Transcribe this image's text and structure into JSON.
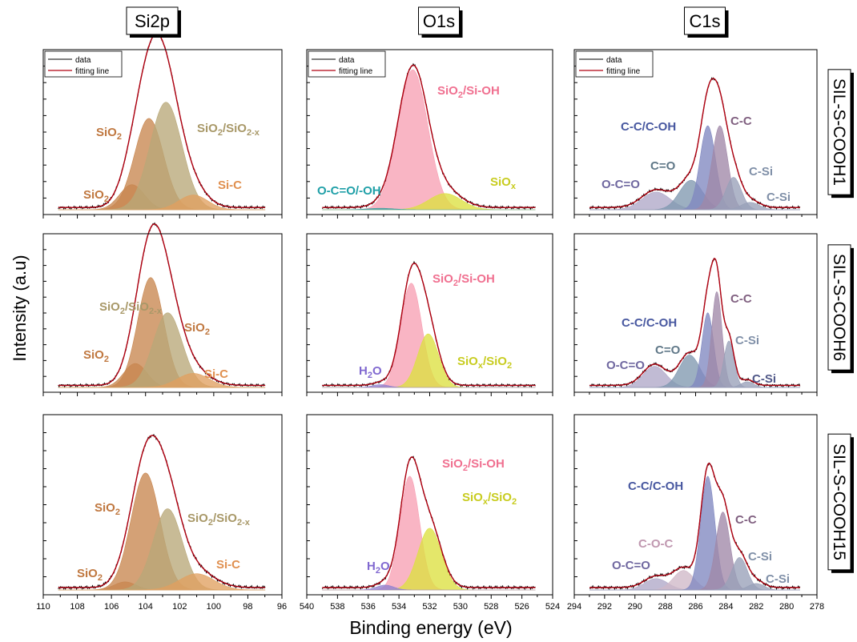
{
  "figure": {
    "y_axis_label": "Intensity (a.u)",
    "x_axis_label": "Binding energy (eV)",
    "column_titles": [
      "Si2p",
      "O1s",
      "C1s"
    ],
    "row_titles": [
      "SIL-S-COOH1",
      "SIL-S-COOH6",
      "SIL-S-COOH15"
    ],
    "legend": {
      "data": "data",
      "fit": "fitting line"
    },
    "colors": {
      "data_line": "#000000",
      "fit_line": "#b00010",
      "panel_border": "#000000"
    }
  },
  "chart_data": [
    {
      "type": "area",
      "title": "Si2p",
      "row": "SIL-S-COOH1",
      "xlim": [
        110,
        96
      ],
      "xticks": [
        110,
        108,
        106,
        104,
        102,
        100,
        98,
        96
      ],
      "peaks": [
        {
          "label": "SiO2 (high BE)",
          "center": 104.8,
          "height": 0.17,
          "fwhm": 1.7,
          "color": "#c8864f"
        },
        {
          "label": "SiO2",
          "center": 103.8,
          "height": 0.62,
          "fwhm": 2.0,
          "color": "#c8864f"
        },
        {
          "label": "SiO2/SiO2-x",
          "center": 102.8,
          "height": 0.73,
          "fwhm": 2.2,
          "color": "#b8a878"
        },
        {
          "label": "Si-C",
          "center": 101.2,
          "height": 0.1,
          "fwhm": 2.0,
          "color": "#e0a060"
        }
      ],
      "annotations": [
        {
          "text": "SiO",
          "sub": "2",
          "color": "#c07840"
        },
        {
          "text": "SiO",
          "sub": "2",
          "color": "#c07840"
        },
        {
          "text": "SiO",
          "sub": "2",
          "tail": "/SiO",
          "sub2": "2-x",
          "color": "#a89868"
        },
        {
          "text": "Si-C",
          "color": "#e09050"
        }
      ]
    },
    {
      "type": "area",
      "title": "O1s",
      "row": "SIL-S-COOH1",
      "xlim": [
        540,
        524
      ],
      "xticks": [
        540,
        538,
        536,
        534,
        532,
        530,
        528,
        526,
        524
      ],
      "peaks": [
        {
          "label": "SiO2/Si-OH",
          "center": 533.1,
          "height": 0.95,
          "fwhm": 2.3,
          "color": "#f7a0b4"
        },
        {
          "label": "SiOx",
          "center": 531.0,
          "height": 0.11,
          "fwhm": 2.5,
          "color": "#dde040"
        },
        {
          "label": "O-C=O/-OH",
          "center": 535.2,
          "height": 0.01,
          "fwhm": 2.0,
          "color": "#40a0a0"
        }
      ],
      "annotations": [
        {
          "text": "SiO",
          "sub": "2",
          "tail": "/Si-OH",
          "color": "#f07090"
        },
        {
          "text": "SiO",
          "sub": "x",
          "color": "#c8cc20"
        },
        {
          "text": "O-C=O/-OH",
          "color": "#20a0a8"
        }
      ]
    },
    {
      "type": "area",
      "title": "C1s",
      "row": "SIL-S-COOH1",
      "xlim": [
        294,
        278
      ],
      "xticks": [
        294,
        292,
        290,
        288,
        286,
        284,
        282,
        280,
        278
      ],
      "peaks": [
        {
          "label": "O-C=O",
          "center": 288.6,
          "height": 0.12,
          "fwhm": 2.2,
          "color": "#b0a8c8"
        },
        {
          "label": "C=O",
          "center": 286.3,
          "height": 0.2,
          "fwhm": 1.8,
          "color": "#8098b0"
        },
        {
          "label": "C-C/C-OH",
          "center": 285.2,
          "height": 0.57,
          "fwhm": 1.2,
          "color": "#8088c0"
        },
        {
          "label": "C-C",
          "center": 284.4,
          "height": 0.57,
          "fwhm": 1.2,
          "color": "#a088a8"
        },
        {
          "label": "C-Si",
          "center": 283.5,
          "height": 0.22,
          "fwhm": 1.2,
          "color": "#98a0b8"
        },
        {
          "label": "C-Si",
          "center": 282.4,
          "height": 0.05,
          "fwhm": 1.4,
          "color": "#98a0b8"
        }
      ],
      "annotations": [
        {
          "text": "C-C/C-OH",
          "color": "#4858a0"
        },
        {
          "text": "C-C",
          "color": "#806080"
        },
        {
          "text": "C=O",
          "color": "#607888"
        },
        {
          "text": "C-Si",
          "color": "#8090a8"
        },
        {
          "text": "O-C=O",
          "color": "#7068a0"
        },
        {
          "text": "C-Si",
          "color": "#8090a8"
        }
      ]
    },
    {
      "type": "area",
      "title": "Si2p",
      "row": "SIL-S-COOH6",
      "xlim": [
        110,
        96
      ],
      "xticks": [
        110,
        108,
        106,
        104,
        102,
        100,
        98,
        96
      ],
      "peaks": [
        {
          "label": "SiO2 (high BE)",
          "center": 104.6,
          "height": 0.17,
          "fwhm": 1.6,
          "color": "#c8864f"
        },
        {
          "label": "SiO2",
          "center": 103.7,
          "height": 0.78,
          "fwhm": 1.8,
          "color": "#c8864f"
        },
        {
          "label": "SiO2/SiO2-x",
          "center": 102.7,
          "height": 0.53,
          "fwhm": 2.0,
          "color": "#b8a878"
        },
        {
          "label": "Si-C",
          "center": 101.2,
          "height": 0.1,
          "fwhm": 2.2,
          "color": "#e0a060"
        }
      ],
      "annotations": [
        {
          "text": "SiO",
          "sub": "2",
          "color": "#c07840"
        },
        {
          "text": "SiO",
          "sub": "2",
          "tail": "/SiO",
          "sub2": "2-x",
          "color": "#a89868"
        },
        {
          "text": "SiO",
          "sub": "2",
          "color": "#c07840"
        },
        {
          "text": "Si-C",
          "color": "#e09050"
        }
      ]
    },
    {
      "type": "area",
      "title": "O1s",
      "row": "SIL-S-COOH6",
      "xlim": [
        540,
        524
      ],
      "xticks": [
        540,
        538,
        536,
        534,
        532,
        530,
        528,
        526,
        524
      ],
      "peaks": [
        {
          "label": "SiO2/Si-OH",
          "center": 533.2,
          "height": 0.74,
          "fwhm": 1.6,
          "color": "#f7a0b4"
        },
        {
          "label": "SiOx/SiO2",
          "center": 532.1,
          "height": 0.38,
          "fwhm": 1.6,
          "color": "#dde040"
        },
        {
          "label": "H2O",
          "center": 535.2,
          "height": 0.02,
          "fwhm": 1.2,
          "color": "#9080d0"
        }
      ],
      "annotations": [
        {
          "text": "SiO",
          "sub": "2",
          "tail": "/Si-OH",
          "color": "#f07090"
        },
        {
          "text": "SiO",
          "sub": "x",
          "tail": "/SiO",
          "sub2": "2",
          "color": "#c8cc20"
        },
        {
          "text": "H",
          "sub": "2",
          "tail": "O",
          "color": "#8068d0"
        }
      ]
    },
    {
      "type": "area",
      "title": "C1s",
      "row": "SIL-S-COOH6",
      "xlim": [
        294,
        278
      ],
      "xticks": [
        294,
        292,
        290,
        288,
        286,
        284,
        282,
        280,
        278
      ],
      "peaks": [
        {
          "label": "O-C=O",
          "center": 288.7,
          "height": 0.15,
          "fwhm": 1.8,
          "color": "#b0a8c8"
        },
        {
          "label": "C=O",
          "center": 286.4,
          "height": 0.23,
          "fwhm": 1.6,
          "color": "#8098b0"
        },
        {
          "label": "C-C/C-OH",
          "center": 285.2,
          "height": 0.53,
          "fwhm": 0.9,
          "color": "#8088c0"
        },
        {
          "label": "C-C",
          "center": 284.6,
          "height": 0.68,
          "fwhm": 0.8,
          "color": "#a088a8"
        },
        {
          "label": "C-Si",
          "center": 283.8,
          "height": 0.33,
          "fwhm": 0.8,
          "color": "#98a0b8"
        },
        {
          "label": "C-Si",
          "center": 282.6,
          "height": 0.04,
          "fwhm": 1.0,
          "color": "#98a0b8"
        }
      ],
      "annotations": [
        {
          "text": "C-C",
          "color": "#806080"
        },
        {
          "text": "C-C/C-OH",
          "color": "#4858a0"
        },
        {
          "text": "C-Si",
          "color": "#8090a8"
        },
        {
          "text": "C=O",
          "color": "#607888"
        },
        {
          "text": "O-C=O",
          "color": "#7068a0"
        },
        {
          "text": "C-Si",
          "color": "#505888"
        }
      ]
    },
    {
      "type": "area",
      "title": "Si2p",
      "row": "SIL-S-COOH15",
      "xlim": [
        110,
        96
      ],
      "xticks": [
        110,
        108,
        106,
        104,
        102,
        100,
        98,
        96
      ],
      "peaks": [
        {
          "label": "SiO2 (high BE)",
          "center": 105.2,
          "height": 0.05,
          "fwhm": 1.5,
          "color": "#c8864f"
        },
        {
          "label": "SiO2",
          "center": 104.0,
          "height": 0.72,
          "fwhm": 2.0,
          "color": "#c8864f"
        },
        {
          "label": "SiO2/SiO2-x",
          "center": 102.7,
          "height": 0.5,
          "fwhm": 2.0,
          "color": "#b8a878"
        },
        {
          "label": "Si-C",
          "center": 101.0,
          "height": 0.1,
          "fwhm": 2.4,
          "color": "#e0a060"
        }
      ],
      "annotations": [
        {
          "text": "SiO",
          "sub": "2",
          "color": "#c07840"
        },
        {
          "text": "SiO",
          "sub": "2",
          "tail": "/SiO",
          "sub2": "2-x",
          "color": "#a89868"
        },
        {
          "text": "Si-C",
          "color": "#e09050"
        },
        {
          "text": "SiO",
          "sub": "2",
          "color": "#c07840"
        }
      ]
    },
    {
      "type": "area",
      "title": "O1s",
      "row": "SIL-S-COOH15",
      "xlim": [
        540,
        524
      ],
      "xticks": [
        540,
        538,
        536,
        534,
        532,
        530,
        528,
        526,
        524
      ],
      "peaks": [
        {
          "label": "SiO2/Si-OH",
          "center": 533.3,
          "height": 0.7,
          "fwhm": 1.5,
          "color": "#f7a0b4"
        },
        {
          "label": "SiOx/SiO2",
          "center": 532.0,
          "height": 0.38,
          "fwhm": 1.8,
          "color": "#dde040"
        },
        {
          "label": "H2O",
          "center": 534.9,
          "height": 0.03,
          "fwhm": 1.3,
          "color": "#9080d0"
        }
      ],
      "annotations": [
        {
          "text": "SiO",
          "sub": "2",
          "tail": "/Si-OH",
          "color": "#f07090"
        },
        {
          "text": "SiO",
          "sub": "x",
          "tail": "/SiO",
          "sub2": "2",
          "color": "#c8cc20"
        },
        {
          "text": "H",
          "sub": "2",
          "tail": "O",
          "color": "#8068d0"
        }
      ]
    },
    {
      "type": "area",
      "title": "C1s",
      "row": "SIL-S-COOH15",
      "xlim": [
        294,
        278
      ],
      "xticks": [
        294,
        292,
        290,
        288,
        286,
        284,
        282,
        280,
        278
      ],
      "peaks": [
        {
          "label": "O-C=O",
          "center": 288.6,
          "height": 0.07,
          "fwhm": 1.8,
          "color": "#b0a8c8"
        },
        {
          "label": "C-O-C",
          "center": 286.8,
          "height": 0.12,
          "fwhm": 1.6,
          "color": "#d0b8c8"
        },
        {
          "label": "C-C/C-OH",
          "center": 285.2,
          "height": 0.7,
          "fwhm": 1.1,
          "color": "#8088c0"
        },
        {
          "label": "C-C",
          "center": 284.2,
          "height": 0.48,
          "fwhm": 1.1,
          "color": "#a088a8"
        },
        {
          "label": "C-Si",
          "center": 283.1,
          "height": 0.2,
          "fwhm": 1.2,
          "color": "#98a0b8"
        },
        {
          "label": "C-Si",
          "center": 282.0,
          "height": 0.04,
          "fwhm": 1.2,
          "color": "#98a0b8"
        }
      ],
      "annotations": [
        {
          "text": "C-C/C-OH",
          "color": "#4858a0"
        },
        {
          "text": "C-C",
          "color": "#806080"
        },
        {
          "text": "C-O-C",
          "color": "#c098b0"
        },
        {
          "text": "C-Si",
          "color": "#8090a8"
        },
        {
          "text": "O-C=O",
          "color": "#7068a0"
        },
        {
          "text": "C-Si",
          "color": "#8090a8"
        }
      ]
    }
  ]
}
